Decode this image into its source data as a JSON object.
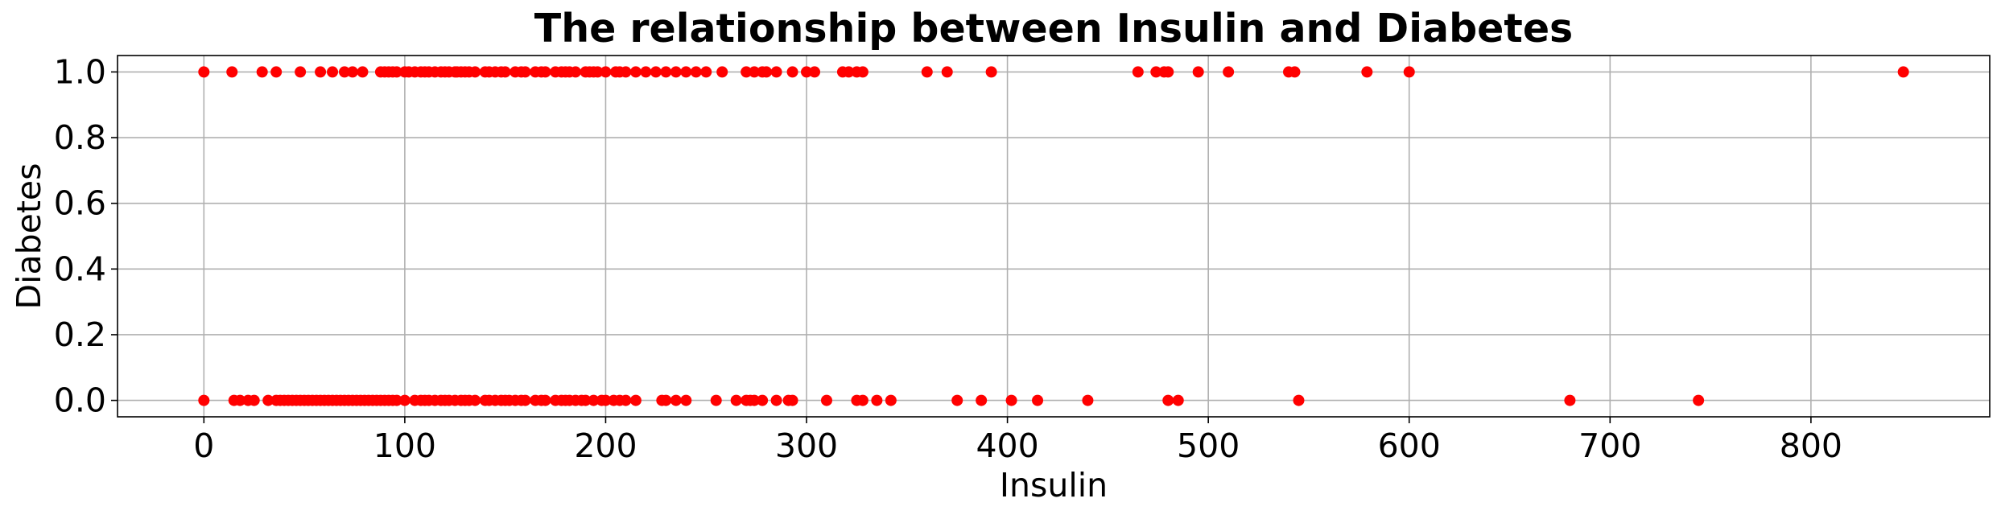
{
  "chart_data": {
    "type": "scatter",
    "title": "The relationship between Insulin and Diabetes",
    "xlabel": "Insulin",
    "ylabel": "Diabetes",
    "xlim": [
      -43,
      889
    ],
    "ylim": [
      -0.05,
      1.05
    ],
    "xticks": [
      0,
      100,
      200,
      300,
      400,
      500,
      600,
      700,
      800
    ],
    "xtick_labels": [
      "0",
      "100",
      "200",
      "300",
      "400",
      "500",
      "600",
      "700",
      "800"
    ],
    "yticks": [
      0.0,
      0.2,
      0.4,
      0.6,
      0.8,
      1.0
    ],
    "ytick_labels": [
      "0.0",
      "0.2",
      "0.4",
      "0.6",
      "0.8",
      "1.0"
    ],
    "grid": true,
    "marker_color": "#ff0000",
    "series": [
      {
        "points": [
          [
            0,
            1
          ],
          [
            14,
            1
          ],
          [
            29,
            1
          ],
          [
            36,
            1
          ],
          [
            48,
            1
          ],
          [
            58,
            1
          ],
          [
            64,
            1
          ],
          [
            70,
            1
          ],
          [
            74,
            1
          ],
          [
            79,
            1
          ],
          [
            88,
            1
          ],
          [
            90,
            1
          ],
          [
            92,
            1
          ],
          [
            94,
            1
          ],
          [
            96,
            1
          ],
          [
            100,
            1
          ],
          [
            102,
            1
          ],
          [
            105,
            1
          ],
          [
            108,
            1
          ],
          [
            110,
            1
          ],
          [
            112,
            1
          ],
          [
            115,
            1
          ],
          [
            118,
            1
          ],
          [
            120,
            1
          ],
          [
            122,
            1
          ],
          [
            125,
            1
          ],
          [
            126,
            1
          ],
          [
            128,
            1
          ],
          [
            130,
            1
          ],
          [
            132,
            1
          ],
          [
            135,
            1
          ],
          [
            140,
            1
          ],
          [
            142,
            1
          ],
          [
            145,
            1
          ],
          [
            148,
            1
          ],
          [
            150,
            1
          ],
          [
            155,
            1
          ],
          [
            158,
            1
          ],
          [
            160,
            1
          ],
          [
            165,
            1
          ],
          [
            168,
            1
          ],
          [
            170,
            1
          ],
          [
            175,
            1
          ],
          [
            178,
            1
          ],
          [
            180,
            1
          ],
          [
            182,
            1
          ],
          [
            185,
            1
          ],
          [
            190,
            1
          ],
          [
            192,
            1
          ],
          [
            194,
            1
          ],
          [
            196,
            1
          ],
          [
            200,
            1
          ],
          [
            205,
            1
          ],
          [
            207,
            1
          ],
          [
            210,
            1
          ],
          [
            215,
            1
          ],
          [
            220,
            1
          ],
          [
            225,
            1
          ],
          [
            230,
            1
          ],
          [
            235,
            1
          ],
          [
            240,
            1
          ],
          [
            245,
            1
          ],
          [
            250,
            1
          ],
          [
            258,
            1
          ],
          [
            270,
            1
          ],
          [
            274,
            1
          ],
          [
            278,
            1
          ],
          [
            280,
            1
          ],
          [
            285,
            1
          ],
          [
            293,
            1
          ],
          [
            300,
            1
          ],
          [
            304,
            1
          ],
          [
            318,
            1
          ],
          [
            321,
            1
          ],
          [
            325,
            1
          ],
          [
            328,
            1
          ],
          [
            360,
            1
          ],
          [
            370,
            1
          ],
          [
            392,
            1
          ],
          [
            465,
            1
          ],
          [
            474,
            1
          ],
          [
            478,
            1
          ],
          [
            480,
            1
          ],
          [
            495,
            1
          ],
          [
            510,
            1
          ],
          [
            540,
            1
          ],
          [
            543,
            1
          ],
          [
            579,
            1
          ],
          [
            600,
            1
          ],
          [
            846,
            1
          ],
          [
            0,
            0
          ],
          [
            15,
            0
          ],
          [
            18,
            0
          ],
          [
            22,
            0
          ],
          [
            25,
            0
          ],
          [
            32,
            0
          ],
          [
            36,
            0
          ],
          [
            38,
            0
          ],
          [
            40,
            0
          ],
          [
            42,
            0
          ],
          [
            44,
            0
          ],
          [
            46,
            0
          ],
          [
            48,
            0
          ],
          [
            50,
            0
          ],
          [
            52,
            0
          ],
          [
            54,
            0
          ],
          [
            56,
            0
          ],
          [
            58,
            0
          ],
          [
            60,
            0
          ],
          [
            62,
            0
          ],
          [
            64,
            0
          ],
          [
            66,
            0
          ],
          [
            68,
            0
          ],
          [
            70,
            0
          ],
          [
            72,
            0
          ],
          [
            74,
            0
          ],
          [
            76,
            0
          ],
          [
            78,
            0
          ],
          [
            80,
            0
          ],
          [
            82,
            0
          ],
          [
            84,
            0
          ],
          [
            86,
            0
          ],
          [
            88,
            0
          ],
          [
            90,
            0
          ],
          [
            92,
            0
          ],
          [
            94,
            0
          ],
          [
            96,
            0
          ],
          [
            100,
            0
          ],
          [
            105,
            0
          ],
          [
            108,
            0
          ],
          [
            110,
            0
          ],
          [
            112,
            0
          ],
          [
            115,
            0
          ],
          [
            118,
            0
          ],
          [
            120,
            0
          ],
          [
            122,
            0
          ],
          [
            125,
            0
          ],
          [
            128,
            0
          ],
          [
            130,
            0
          ],
          [
            132,
            0
          ],
          [
            135,
            0
          ],
          [
            140,
            0
          ],
          [
            142,
            0
          ],
          [
            145,
            0
          ],
          [
            148,
            0
          ],
          [
            150,
            0
          ],
          [
            152,
            0
          ],
          [
            155,
            0
          ],
          [
            158,
            0
          ],
          [
            160,
            0
          ],
          [
            165,
            0
          ],
          [
            168,
            0
          ],
          [
            170,
            0
          ],
          [
            175,
            0
          ],
          [
            178,
            0
          ],
          [
            180,
            0
          ],
          [
            182,
            0
          ],
          [
            185,
            0
          ],
          [
            188,
            0
          ],
          [
            190,
            0
          ],
          [
            194,
            0
          ],
          [
            198,
            0
          ],
          [
            200,
            0
          ],
          [
            204,
            0
          ],
          [
            207,
            0
          ],
          [
            210,
            0
          ],
          [
            215,
            0
          ],
          [
            228,
            0
          ],
          [
            230,
            0
          ],
          [
            235,
            0
          ],
          [
            240,
            0
          ],
          [
            255,
            0
          ],
          [
            265,
            0
          ],
          [
            270,
            0
          ],
          [
            272,
            0
          ],
          [
            274,
            0
          ],
          [
            278,
            0
          ],
          [
            285,
            0
          ],
          [
            291,
            0
          ],
          [
            293,
            0
          ],
          [
            310,
            0
          ],
          [
            325,
            0
          ],
          [
            328,
            0
          ],
          [
            335,
            0
          ],
          [
            342,
            0
          ],
          [
            375,
            0
          ],
          [
            387,
            0
          ],
          [
            402,
            0
          ],
          [
            415,
            0
          ],
          [
            440,
            0
          ],
          [
            480,
            0
          ],
          [
            485,
            0
          ],
          [
            545,
            0
          ],
          [
            680,
            0
          ],
          [
            744,
            0
          ]
        ]
      }
    ]
  }
}
